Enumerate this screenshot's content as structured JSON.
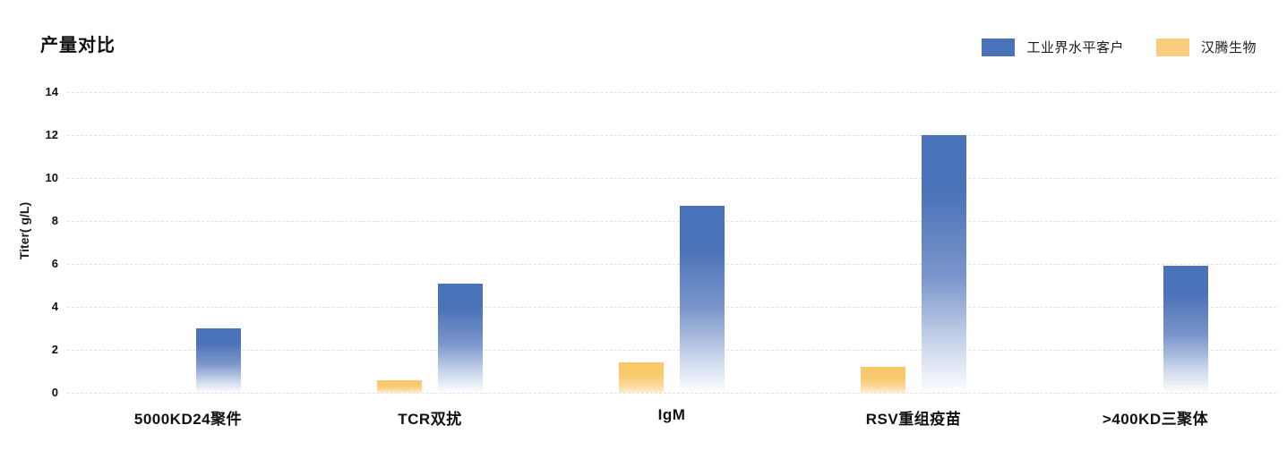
{
  "page": {
    "background_color": "#ffffff"
  },
  "header": {
    "title": "产量对比"
  },
  "legend": {
    "position": "top-right",
    "items": [
      {
        "label": "工业界水平客户",
        "color": "#4A72B8"
      },
      {
        "label": "汉腾生物",
        "color": "#F9CD7E"
      }
    ]
  },
  "chart_data": {
    "type": "bar",
    "title": "产量对比",
    "xlabel": "",
    "ylabel": "Titer( g/L)",
    "categories": [
      "5000KD24聚件",
      "TCR双扰",
      "IgM",
      "RSV重组疫苗",
      ">400KD三聚体"
    ],
    "series": [
      {
        "name": "汉腾生物",
        "key": "henlius",
        "color": "#F9C96E",
        "values": [
          null,
          0.6,
          1.4,
          1.2,
          null
        ]
      },
      {
        "name": "工业界水平客户",
        "key": "industry",
        "color": "#4A72B8",
        "values": [
          3.0,
          5.1,
          8.7,
          12.0,
          5.9
        ]
      }
    ],
    "ylim": [
      0,
      14
    ],
    "yticks": [
      0,
      2,
      4,
      6,
      8,
      10,
      12,
      14
    ],
    "grid": "horizontal-dashed",
    "gridline_color": "#e2e2e2",
    "legend_position": "top-right",
    "bar_order_in_group": [
      "汉腾生物",
      "工业界水平客户"
    ],
    "bar_style": "vertical gradient fading to white toward baseline"
  }
}
